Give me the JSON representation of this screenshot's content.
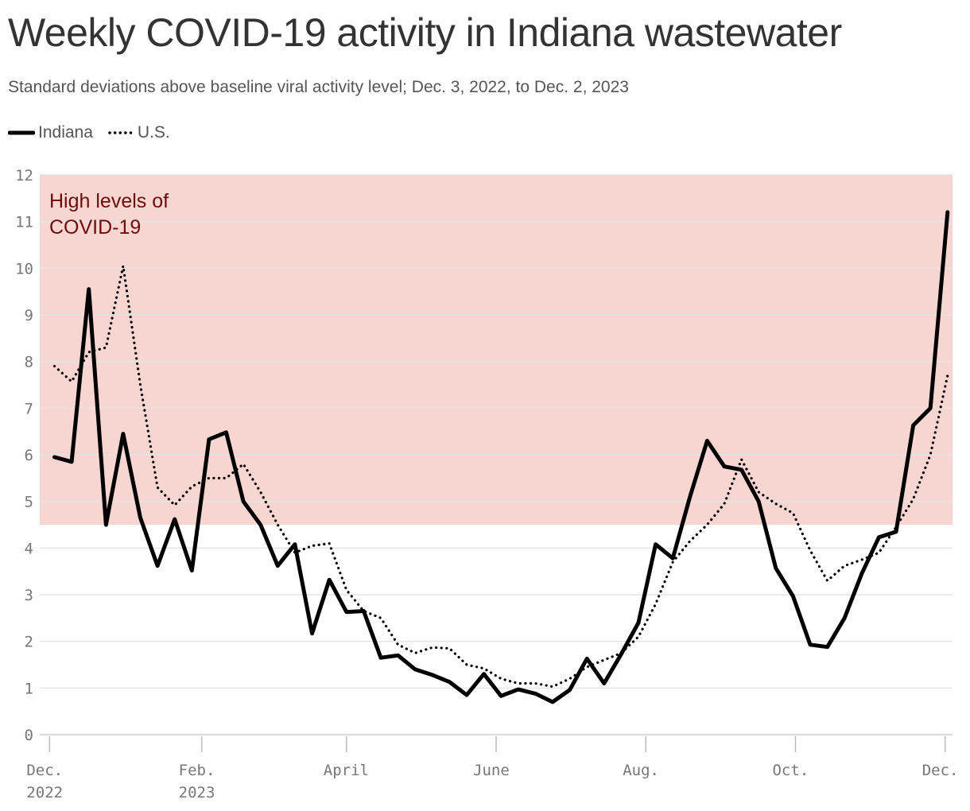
{
  "chart_data": {
    "type": "line",
    "title": "Weekly COVID-19 activity in Indiana wastewater",
    "subtitle": "Standard deviations above baseline viral activity level; Dec. 3, 2022, to Dec. 2, 2023",
    "xlabel": "",
    "ylabel": "",
    "ylim": [
      0,
      12
    ],
    "xlim": [
      "2022-11-27",
      "2023-12-04"
    ],
    "grid": true,
    "legend_position": "top-left",
    "y_ticks": [
      "0",
      "1",
      "2",
      "3",
      "4",
      "5",
      "6",
      "7",
      "8",
      "9",
      "10",
      "11",
      "12"
    ],
    "x_ticks": [
      {
        "date": "2022-12-01",
        "label1": "Dec.",
        "label2": "2022"
      },
      {
        "date": "2023-02-01",
        "label1": "Feb.",
        "label2": "2023"
      },
      {
        "date": "2023-04-01",
        "label1": "April",
        "label2": ""
      },
      {
        "date": "2023-06-01",
        "label1": "June",
        "label2": ""
      },
      {
        "date": "2023-08-01",
        "label1": "Aug.",
        "label2": ""
      },
      {
        "date": "2023-10-01",
        "label1": "Oct.",
        "label2": ""
      },
      {
        "date": "2023-12-01",
        "label1": "Dec.",
        "label2": ""
      }
    ],
    "band": {
      "from": 4.5,
      "to": 12,
      "label_line1": "High levels of",
      "label_line2": "COVID-19",
      "color": "#f7d6d2"
    },
    "x": [
      "2022-12-03",
      "2022-12-10",
      "2022-12-17",
      "2022-12-24",
      "2022-12-31",
      "2023-01-07",
      "2023-01-14",
      "2023-01-21",
      "2023-01-28",
      "2023-02-04",
      "2023-02-11",
      "2023-02-18",
      "2023-02-25",
      "2023-03-04",
      "2023-03-11",
      "2023-03-18",
      "2023-03-25",
      "2023-04-01",
      "2023-04-08",
      "2023-04-15",
      "2023-04-22",
      "2023-04-29",
      "2023-05-06",
      "2023-05-13",
      "2023-05-20",
      "2023-05-27",
      "2023-06-03",
      "2023-06-10",
      "2023-06-17",
      "2023-06-24",
      "2023-07-01",
      "2023-07-08",
      "2023-07-15",
      "2023-07-22",
      "2023-07-29",
      "2023-08-05",
      "2023-08-12",
      "2023-08-19",
      "2023-08-26",
      "2023-09-02",
      "2023-09-09",
      "2023-09-16",
      "2023-09-23",
      "2023-09-30",
      "2023-10-07",
      "2023-10-14",
      "2023-10-21",
      "2023-10-28",
      "2023-11-04",
      "2023-11-11",
      "2023-11-18",
      "2023-11-25",
      "2023-12-02"
    ],
    "series": [
      {
        "name": "Indiana",
        "style": "solid",
        "color": "#000000",
        "values": [
          5.95,
          5.85,
          9.55,
          4.5,
          6.45,
          4.65,
          3.62,
          4.62,
          3.52,
          6.33,
          6.48,
          5.0,
          4.5,
          3.62,
          4.08,
          2.17,
          3.32,
          2.63,
          2.65,
          1.65,
          1.7,
          1.4,
          1.28,
          1.13,
          0.85,
          1.3,
          0.83,
          0.97,
          0.88,
          0.7,
          0.96,
          1.63,
          1.1,
          1.73,
          2.4,
          4.08,
          3.78,
          5.1,
          6.3,
          5.75,
          5.68,
          5.0,
          3.57,
          2.97,
          1.93,
          1.88,
          2.5,
          3.45,
          4.23,
          4.35,
          6.63,
          7.0,
          11.2
        ]
      },
      {
        "name": "U.S.",
        "style": "dotted",
        "color": "#000000",
        "values": [
          7.9,
          7.57,
          8.2,
          8.3,
          10.05,
          7.5,
          5.3,
          4.92,
          5.32,
          5.5,
          5.5,
          5.8,
          5.2,
          4.5,
          3.9,
          4.05,
          4.1,
          3.1,
          2.65,
          2.5,
          1.93,
          1.75,
          1.87,
          1.85,
          1.5,
          1.42,
          1.2,
          1.1,
          1.1,
          1.03,
          1.2,
          1.45,
          1.6,
          1.75,
          2.1,
          2.8,
          3.7,
          4.15,
          4.5,
          4.95,
          5.9,
          5.2,
          4.95,
          4.75,
          3.95,
          3.3,
          3.62,
          3.75,
          3.9,
          4.45,
          5.05,
          6.0,
          7.7
        ]
      }
    ]
  }
}
